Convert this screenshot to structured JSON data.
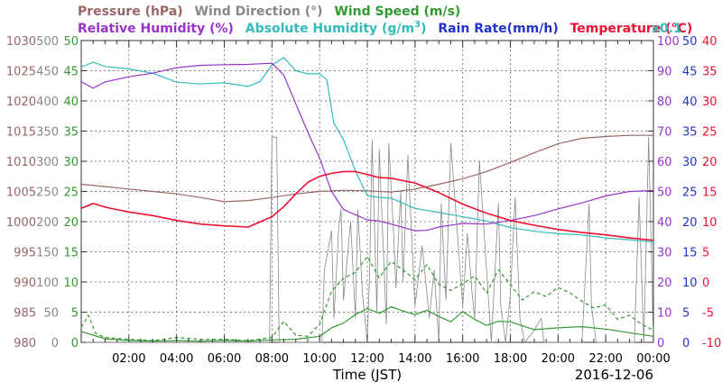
{
  "chart_data": {
    "type": "line",
    "x_axis": {
      "label": "Time (JST)",
      "date": "2016-12-06",
      "tick_labels": [
        "02:00",
        "04:00",
        "06:00",
        "08:00",
        "10:00",
        "12:00",
        "14:00",
        "16:00",
        "18:00",
        "20:00",
        "22:00",
        "00:00"
      ],
      "range_hours": [
        0,
        24
      ]
    },
    "legend_row1": [
      {
        "name": "Pressure (hPa)",
        "color": "#996666"
      },
      {
        "name": "Wind Direction (°)",
        "color": "#888888"
      },
      {
        "name": "Wind Speed (m/s)",
        "color": "#339933"
      }
    ],
    "legend_row2": [
      {
        "name": "Relative Humidity (%)",
        "color": "#9933cc"
      },
      {
        "name": "Absolute Humidity (g/m",
        "sup": "3",
        "close": ")",
        "color": "#33bbbb"
      },
      {
        "name": "Rain Rate(mm/h)",
        "color": "#2233cc"
      },
      {
        "name": "Temperature (°C)",
        "color": "#ee1133"
      },
      {
        "name": "x0.1",
        "color": "#33bbbb"
      }
    ],
    "axes": {
      "pressure": {
        "color": "#996666",
        "ticks": [
          "980",
          "985",
          "990",
          "995",
          "1000",
          "1005",
          "1010",
          "1015",
          "1020",
          "1025",
          "1030"
        ],
        "range": [
          980,
          1030
        ]
      },
      "wind_direction": {
        "color": "#888888",
        "ticks": [
          "0",
          "50",
          "100",
          "150",
          "200",
          "250",
          "300",
          "350",
          "400",
          "450",
          "500"
        ],
        "range": [
          0,
          500
        ]
      },
      "wind_speed": {
        "color": "#339933",
        "ticks": [
          "0",
          "5",
          "10",
          "15",
          "20",
          "25",
          "30",
          "35",
          "40",
          "45",
          "50"
        ],
        "range": [
          0,
          50
        ]
      },
      "relative_humidity": {
        "color": "#9933cc",
        "ticks": [
          "0",
          "10",
          "20",
          "30",
          "40",
          "50",
          "60",
          "70",
          "80",
          "90",
          "100"
        ],
        "range": [
          0,
          100
        ]
      },
      "rain_rate": {
        "color": "#2233cc",
        "ticks": [
          "0",
          "5",
          "10",
          "15",
          "20",
          "25",
          "30",
          "35",
          "40",
          "45",
          "50"
        ],
        "range": [
          0,
          50
        ]
      },
      "temperature": {
        "color": "#ee1133",
        "ticks": [
          "-10",
          "-5",
          "0",
          "5",
          "10",
          "15",
          "20",
          "25",
          "30",
          "35",
          "40"
        ],
        "range": [
          -10,
          40
        ]
      }
    },
    "series": [
      {
        "name": "Pressure (hPa)",
        "color": "#996666",
        "x": [
          0,
          1,
          2,
          3,
          4,
          5,
          6,
          7,
          8,
          9,
          10,
          11,
          12,
          13,
          14,
          15,
          16,
          17,
          18,
          19,
          20,
          21,
          22,
          23,
          24
        ],
        "y": [
          1006.2,
          1005.8,
          1005.4,
          1005.0,
          1004.6,
          1004.0,
          1003.3,
          1003.5,
          1004.0,
          1004.6,
          1005.0,
          1005.2,
          1005.1,
          1004.9,
          1005.4,
          1006.2,
          1007.1,
          1008.3,
          1009.8,
          1011.4,
          1012.9,
          1013.8,
          1014.1,
          1014.3,
          1014.3
        ]
      },
      {
        "name": "Temperature (°C)",
        "color": "#ee1133",
        "x": [
          0,
          0.5,
          1,
          2,
          3,
          4,
          5,
          6,
          7,
          8,
          8.5,
          9,
          9.5,
          10,
          10.5,
          11,
          11.5,
          12,
          12.5,
          13,
          14,
          15,
          16,
          17,
          18,
          19,
          20,
          21,
          22,
          23,
          24
        ],
        "y": [
          12.2,
          13.0,
          12.4,
          11.6,
          11.0,
          10.2,
          9.6,
          9.3,
          9.1,
          10.8,
          12.5,
          14.6,
          16.5,
          17.5,
          18.0,
          18.3,
          18.3,
          17.8,
          17.3,
          17.2,
          16.4,
          14.8,
          12.9,
          11.4,
          10.2,
          9.4,
          8.7,
          8.2,
          7.8,
          7.3,
          6.9
        ]
      },
      {
        "name": "Relative Humidity (%)",
        "color": "#9933cc",
        "x": [
          0,
          0.5,
          1,
          2,
          3,
          4,
          5,
          6,
          7,
          7.5,
          8,
          8.5,
          9,
          9.5,
          10,
          10.5,
          11,
          11.5,
          12,
          12.5,
          13,
          14,
          14.5,
          15,
          16,
          17,
          18,
          19,
          20,
          21,
          22,
          23,
          24
        ],
        "y": [
          86.4,
          84.2,
          86.3,
          88.0,
          89.2,
          91.0,
          91.8,
          92.0,
          92.1,
          92.3,
          92.5,
          88.5,
          79.0,
          69.7,
          61.0,
          50.0,
          44.0,
          42.3,
          40.6,
          40.2,
          39.2,
          37.0,
          37.1,
          38.2,
          39.4,
          39.2,
          40.4,
          42.0,
          44.2,
          46.2,
          48.5,
          50.0,
          50.3
        ]
      },
      {
        "name": "Absolute Humidity (g/m³) x0.1",
        "color": "#33bbbb",
        "x": [
          0,
          0.5,
          1,
          2,
          3,
          4,
          5,
          6,
          7,
          7.5,
          8,
          8.5,
          9,
          9.5,
          10,
          10.3,
          10.6,
          11,
          11.5,
          12,
          12.5,
          13,
          14,
          15,
          16,
          17,
          18,
          19,
          20,
          21,
          22,
          23,
          24
        ],
        "y": [
          45.6,
          46.4,
          45.7,
          45.3,
          44.6,
          43.1,
          42.8,
          43.0,
          42.4,
          43.2,
          45.9,
          47.2,
          45.0,
          44.5,
          44.5,
          43.5,
          36.3,
          33.6,
          28.4,
          24.3,
          24.0,
          23.9,
          22.2,
          21.5,
          20.8,
          20.1,
          19.0,
          18.4,
          18.0,
          17.8,
          17.3,
          17.0,
          16.6
        ]
      },
      {
        "name": "Wind Speed (m/s) avg",
        "color": "#339933",
        "x": [
          0,
          1,
          2,
          3,
          4,
          5,
          6,
          7,
          8,
          9,
          10,
          10.5,
          11,
          11.5,
          12,
          12.5,
          13,
          13.5,
          14,
          14.5,
          15,
          15.5,
          16,
          16.5,
          17,
          17.5,
          18,
          19,
          20,
          21,
          22,
          23,
          24
        ],
        "y": [
          1.8,
          0.6,
          0.3,
          0.2,
          0.3,
          0.2,
          0.3,
          0.2,
          0.4,
          0.5,
          1.0,
          2.4,
          3.2,
          4.6,
          5.6,
          4.8,
          5.9,
          5.2,
          4.6,
          5.3,
          4.3,
          3.4,
          5.1,
          3.8,
          2.8,
          3.5,
          3.4,
          2.1,
          2.4,
          2.6,
          2.2,
          1.6,
          1.0
        ]
      },
      {
        "name": "Wind Speed (m/s) gust",
        "color": "#339933",
        "dashed": true,
        "x": [
          0,
          0.3,
          0.6,
          1,
          2,
          3,
          4,
          5,
          6,
          7,
          8,
          8.5,
          9,
          9.5,
          10,
          10.5,
          11,
          11.5,
          12,
          12.5,
          13,
          13.5,
          14,
          14.5,
          15,
          15.5,
          16,
          16.5,
          17,
          17.5,
          18,
          18.5,
          19,
          19.5,
          20,
          20.5,
          21,
          21.5,
          22,
          22.5,
          23,
          23.5,
          24
        ],
        "y": [
          2.5,
          4.5,
          1.5,
          0.8,
          0.5,
          0.3,
          0.8,
          0.5,
          0.5,
          0.3,
          0.8,
          3.5,
          1.2,
          1.0,
          3.0,
          8.5,
          10.6,
          11.6,
          14.2,
          10.7,
          13.4,
          12.0,
          10.4,
          12.9,
          9.6,
          8.6,
          9.7,
          11.0,
          8.2,
          12.0,
          9.6,
          7.0,
          8.4,
          7.6,
          9.1,
          8.2,
          6.8,
          5.7,
          6.2,
          3.8,
          4.5,
          3.0,
          2.0
        ]
      },
      {
        "name": "Wind Direction (°)",
        "color": "#888888",
        "x": [
          0,
          7.9,
          8,
          8.2,
          8.3,
          8.5,
          8.6,
          10.1,
          10.2,
          10.5,
          10.6,
          10.8,
          10.9,
          11,
          11.3,
          11.5,
          11.6,
          11.8,
          12,
          12.1,
          12.2,
          12.4,
          12.5,
          12.8,
          12.9,
          13.1,
          13.2,
          13.4,
          13.5,
          13.7,
          14,
          14.3,
          14.6,
          14.8,
          15,
          15.1,
          15.3,
          15.5,
          16,
          16.2,
          16.4,
          16.5,
          16.7,
          17,
          17.2,
          17.5,
          17.6,
          17.8,
          18,
          18.2,
          18.4,
          18.6,
          19,
          19.3,
          19.4,
          19.6,
          20,
          21,
          21.3,
          21.4,
          21.6,
          22,
          22.5,
          23,
          23.2,
          23.4,
          23.6,
          23.8,
          24
        ],
        "y": [
          0,
          0,
          340,
          340,
          0,
          0,
          0,
          0,
          120,
          185,
          40,
          190,
          220,
          70,
          200,
          40,
          220,
          80,
          0,
          120,
          335,
          50,
          320,
          30,
          330,
          180,
          90,
          250,
          100,
          310,
          60,
          160,
          40,
          120,
          0,
          230,
          70,
          330,
          60,
          180,
          80,
          40,
          300,
          120,
          0,
          230,
          60,
          0,
          80,
          240,
          40,
          0,
          20,
          40,
          0,
          0,
          0,
          0,
          230,
          60,
          0,
          0,
          0,
          0,
          0,
          240,
          0,
          340,
          0
        ]
      }
    ]
  }
}
